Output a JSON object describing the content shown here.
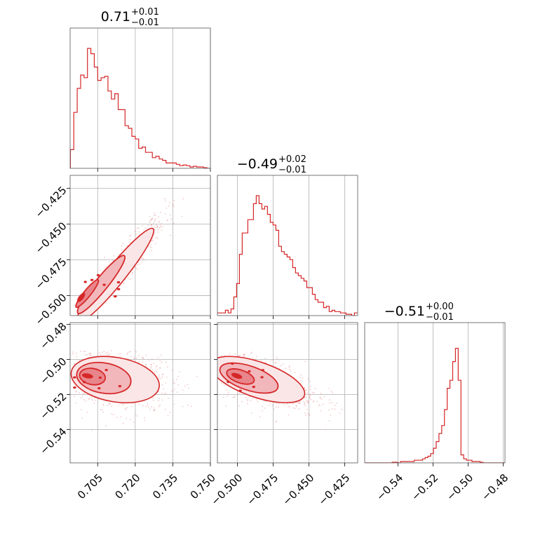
{
  "chart_data": {
    "type": "corner",
    "color": "#d62728",
    "grid": true,
    "titles": [
      {
        "value": "0.71",
        "plus": "+0.01",
        "minus": "−0.01"
      },
      {
        "value": "−0.49",
        "plus": "+0.02",
        "minus": "−0.01"
      },
      {
        "value": "−0.51",
        "plus": "+0.00",
        "minus": "−0.01"
      }
    ],
    "params": [
      {
        "range": [
          0.694,
          0.75
        ],
        "ticks": [
          0.705,
          0.72,
          0.735,
          0.75
        ],
        "tick_labels": [
          "0.705",
          "0.720",
          "0.735",
          "0.750"
        ]
      },
      {
        "range": [
          -0.514,
          -0.416
        ],
        "ticks": [
          -0.5,
          -0.475,
          -0.45,
          -0.425
        ],
        "tick_labels": [
          "−0.500",
          "−0.475",
          "−0.450",
          "−0.425"
        ]
      },
      {
        "range": [
          -0.559,
          -0.479
        ],
        "ticks": [
          -0.54,
          -0.52,
          -0.5,
          -0.48
        ],
        "tick_labels": [
          "−0.54",
          "−0.52",
          "−0.50",
          "−0.48"
        ]
      }
    ],
    "histograms": [
      {
        "edges": [
          0.6941,
          0.75
        ],
        "counts": [
          0.14,
          0.42,
          0.6,
          0.7,
          0.68,
          0.9,
          0.86,
          0.76,
          0.66,
          0.68,
          0.69,
          0.58,
          0.52,
          0.56,
          0.44,
          0.44,
          0.32,
          0.3,
          0.24,
          0.22,
          0.15,
          0.16,
          0.12,
          0.12,
          0.08,
          0.09,
          0.07,
          0.06,
          0.04,
          0.04,
          0.04,
          0.03,
          0.02,
          0.025,
          0.02,
          0.01,
          0.015,
          0.01,
          0.01,
          0.005,
          0.0
        ]
      },
      {
        "edges": [
          -0.5143,
          -0.4163
        ],
        "counts": [
          0.02,
          0.02,
          0.02,
          0.04,
          0.02,
          0.05,
          0.14,
          0.24,
          0.46,
          0.62,
          0.62,
          0.72,
          0.72,
          0.84,
          0.9,
          0.84,
          0.8,
          0.82,
          0.76,
          0.7,
          0.68,
          0.64,
          0.52,
          0.48,
          0.46,
          0.44,
          0.42,
          0.36,
          0.32,
          0.3,
          0.28,
          0.26,
          0.21,
          0.21,
          0.16,
          0.12,
          0.1,
          0.1,
          0.06,
          0.07,
          0.03,
          0.04,
          0.03,
          0.03,
          0.02,
          0.02,
          0.01,
          0.01,
          0.0,
          0.02
        ]
      },
      {
        "edges": [
          -0.559,
          -0.479
        ],
        "counts": [
          0.0,
          0.0,
          0.0,
          0.0,
          0.0,
          0.0,
          0.0,
          0.0,
          0.0,
          0.0,
          0.005,
          0.005,
          0.0,
          0.01,
          0.01,
          0.01,
          0.01,
          0.01,
          0.02,
          0.02,
          0.02,
          0.03,
          0.04,
          0.05,
          0.07,
          0.11,
          0.16,
          0.22,
          0.28,
          0.4,
          0.56,
          0.62,
          0.76,
          0.86,
          0.62,
          0.06,
          0.03,
          0.02,
          0.02,
          0.01,
          0.01,
          0.01,
          0.005,
          0.0,
          0.0,
          0.0,
          0.0,
          0.0,
          0.0,
          0.0,
          0.0
        ]
      }
    ],
    "pairs": [
      {
        "x_param": 0,
        "y_param": 1,
        "center": [
          0.712,
          -0.486
        ],
        "sigma": [
          0.007,
          0.015
        ],
        "correlation": 0.95,
        "offset": [
          0.696,
          -0.504
        ],
        "scatter_x_range": [
          0.695,
          0.745
        ],
        "scatter_y_range": [
          -0.508,
          -0.418
        ]
      },
      {
        "x_param": 0,
        "y_param": 2,
        "center": [
          0.712,
          -0.5115
        ],
        "sigma": [
          0.008,
          0.006
        ],
        "correlation": -0.25,
        "offset": [
          0.699,
          -0.509
        ],
        "scatter_x_range": [
          0.695,
          0.748
        ],
        "scatter_y_range": [
          -0.545,
          -0.495
        ]
      },
      {
        "x_param": 1,
        "y_param": 2,
        "center": [
          -0.486,
          -0.5115
        ],
        "sigma": [
          0.015,
          0.006
        ],
        "correlation": -0.6,
        "offset": [
          -0.503,
          -0.509
        ],
        "scatter_x_range": [
          -0.512,
          -0.418
        ],
        "scatter_y_range": [
          -0.545,
          -0.495
        ]
      }
    ]
  }
}
